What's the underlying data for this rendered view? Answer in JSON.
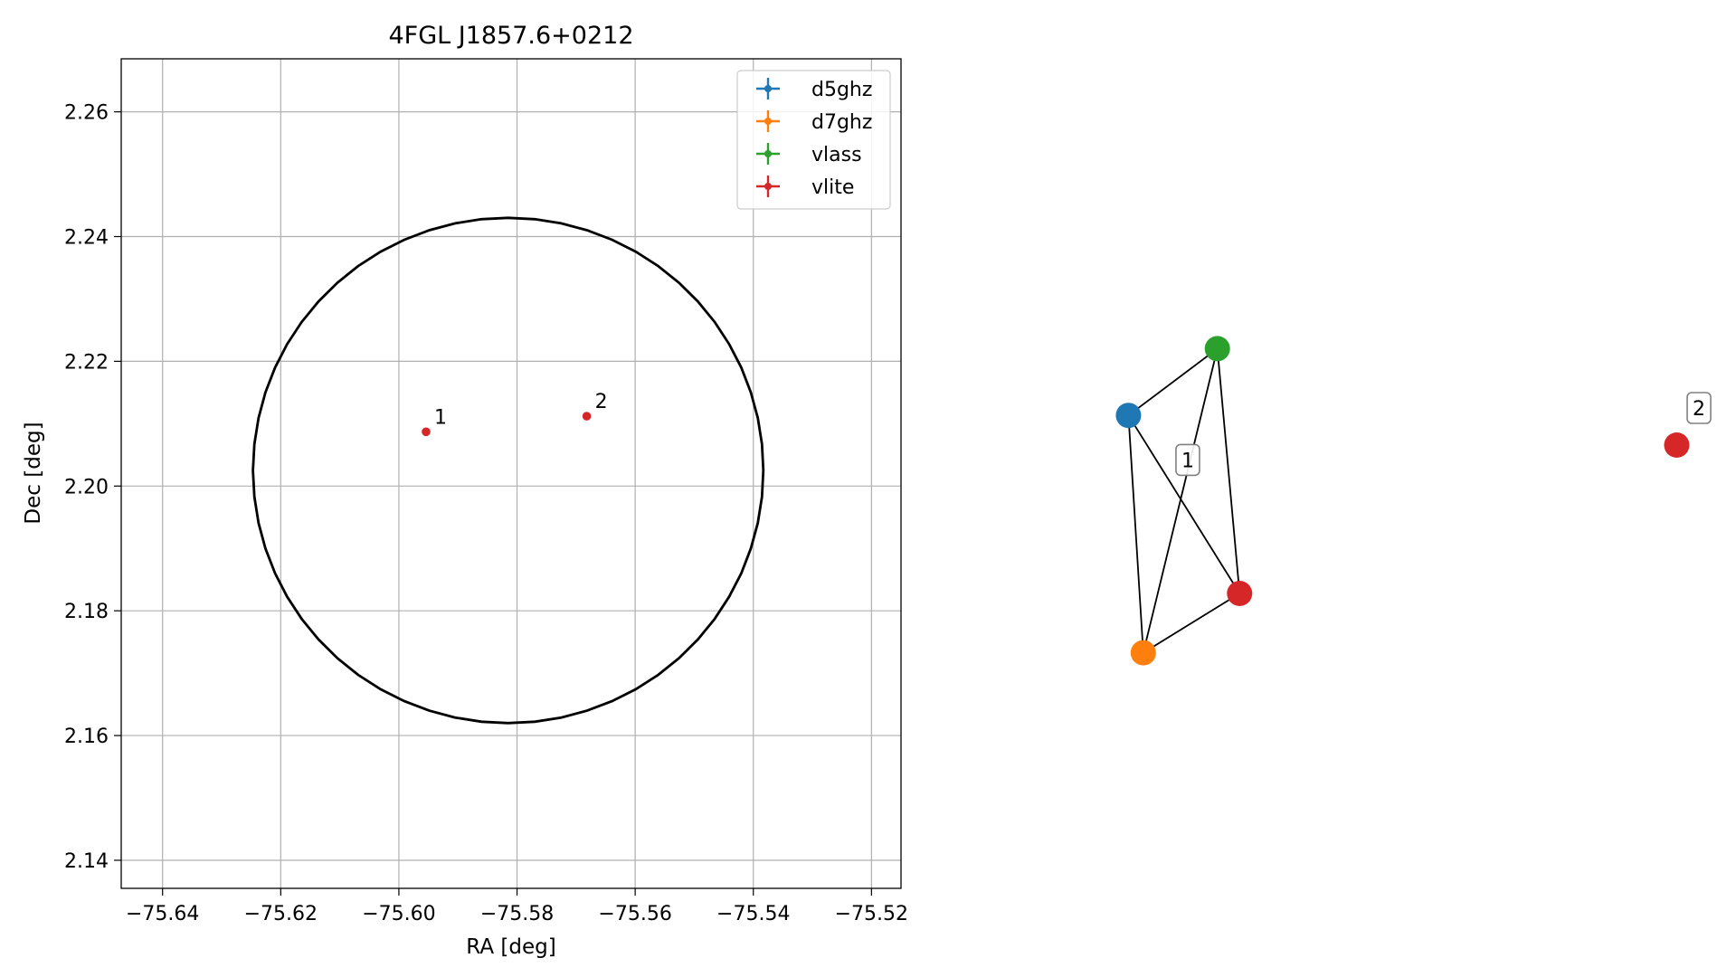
{
  "chart_data": [
    {
      "type": "scatter",
      "title": "4FGL J1857.6+0212",
      "xlabel": "RA [deg]",
      "ylabel": "Dec [deg]",
      "xlim": [
        -75.647,
        -75.515
      ],
      "ylim": [
        2.1355,
        2.2685
      ],
      "xticks": [
        -75.64,
        -75.62,
        -75.6,
        -75.58,
        -75.56,
        -75.54,
        -75.52
      ],
      "xtick_labels": [
        "−75.64",
        "−75.62",
        "−75.60",
        "−75.58",
        "−75.56",
        "−75.54",
        "−75.52"
      ],
      "yticks": [
        2.14,
        2.16,
        2.18,
        2.2,
        2.22,
        2.24,
        2.26
      ],
      "ytick_labels": [
        "2.14",
        "2.16",
        "2.18",
        "2.20",
        "2.22",
        "2.24",
        "2.26"
      ],
      "grid": true,
      "legend_position": "top-right",
      "legend": [
        {
          "name": "d5ghz",
          "color": "#1f77b4"
        },
        {
          "name": "d7ghz",
          "color": "#ff7f0e"
        },
        {
          "name": "vlass",
          "color": "#2ca02c"
        },
        {
          "name": "vlite",
          "color": "#d62728"
        }
      ],
      "ellipse": {
        "center_ra": -75.5815,
        "center_dec": 2.2025,
        "radius_ra": 0.0432,
        "radius_dec": 0.0405,
        "color": "#000000"
      },
      "points": [
        {
          "label": "1",
          "ra": -75.5954,
          "dec": 2.2087,
          "color": "#d62728"
        },
        {
          "label": "2",
          "ra": -75.5682,
          "dec": 2.2112,
          "color": "#d62728"
        }
      ]
    },
    {
      "type": "diagram",
      "nodes": [
        {
          "id": "d5ghz",
          "color": "#1f77b4",
          "x": 0.18,
          "y": 0.56
        },
        {
          "id": "vlass",
          "color": "#2ca02c",
          "x": 0.3,
          "y": 0.47
        },
        {
          "id": "vlite_1",
          "color": "#d62728",
          "x": 0.33,
          "y": 0.8
        },
        {
          "id": "d7ghz",
          "color": "#ff7f0e",
          "x": 0.2,
          "y": 0.88
        },
        {
          "id": "vlite_2",
          "color": "#d62728",
          "x": 0.92,
          "y": 0.6
        }
      ],
      "edges": [
        [
          "d5ghz",
          "vlass"
        ],
        [
          "d5ghz",
          "vlite_1"
        ],
        [
          "d5ghz",
          "d7ghz"
        ],
        [
          "vlass",
          "vlite_1"
        ],
        [
          "vlass",
          "d7ghz"
        ],
        [
          "d7ghz",
          "vlite_1"
        ]
      ],
      "group_labels": [
        {
          "text": "1",
          "x": 0.26,
          "y": 0.62
        },
        {
          "text": "2",
          "x": 0.95,
          "y": 0.55
        }
      ]
    }
  ]
}
